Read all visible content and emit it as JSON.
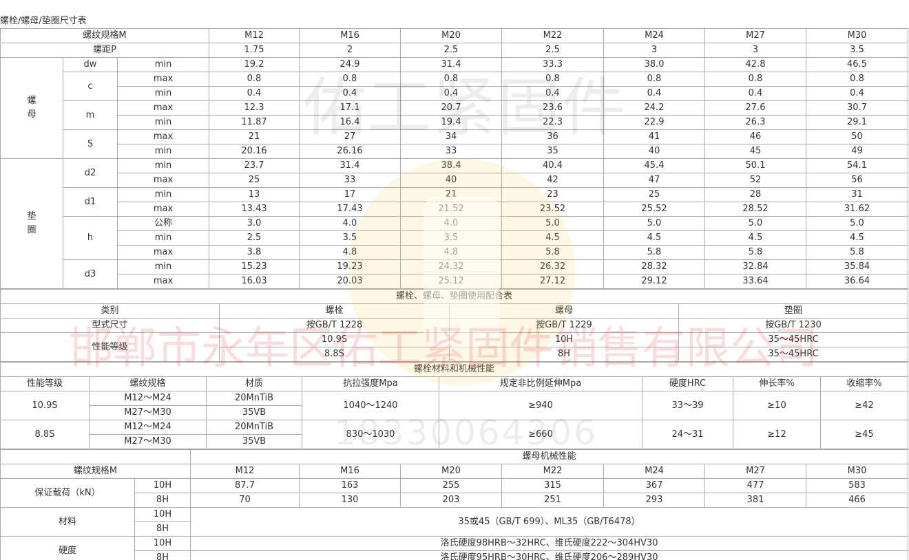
{
  "title": "螺栓/螺母/垫圈尺寸表",
  "size_table": {
    "spec_label": "螺纹规格M",
    "specs": [
      "M12",
      "M16",
      "M20",
      "M22",
      "M24",
      "M27",
      "M30"
    ],
    "pitch_label": "螺距P",
    "pitch": [
      "1.75",
      "2",
      "2.5",
      "2.5",
      "3",
      "3",
      "3.5"
    ],
    "groups": [
      {
        "label": "螺母",
        "params": [
          {
            "name": "dw",
            "rows": [
              {
                "sub": "min",
                "values": [
                  "19.2",
                  "24.9",
                  "31.4",
                  "33.3",
                  "38.0",
                  "42.8",
                  "46.5"
                ]
              }
            ]
          },
          {
            "name": "c",
            "rows": [
              {
                "sub": "max",
                "values": [
                  "0.8",
                  "0.8",
                  "0.8",
                  "0.8",
                  "0.8",
                  "0.8",
                  "0.8"
                ]
              },
              {
                "sub": "min",
                "values": [
                  "0.4",
                  "0.4",
                  "0.4",
                  "0.4",
                  "0.4",
                  "0.4",
                  "0.4"
                ]
              }
            ]
          },
          {
            "name": "m",
            "rows": [
              {
                "sub": "max",
                "values": [
                  "12.3",
                  "17.1",
                  "20.7",
                  "23.6",
                  "24.2",
                  "27.6",
                  "30.7"
                ]
              },
              {
                "sub": "min",
                "values": [
                  "11.87",
                  "16.4",
                  "19.4",
                  "22.3",
                  "22.9",
                  "26.3",
                  "29.1"
                ]
              }
            ]
          },
          {
            "name": "S",
            "rows": [
              {
                "sub": "max",
                "values": [
                  "21",
                  "27",
                  "34",
                  "36",
                  "41",
                  "46",
                  "50"
                ]
              },
              {
                "sub": "min",
                "values": [
                  "20.16",
                  "26.16",
                  "33",
                  "35",
                  "40",
                  "45",
                  "49"
                ]
              }
            ]
          }
        ]
      },
      {
        "label": "垫圈",
        "params": [
          {
            "name": "d2",
            "rows": [
              {
                "sub": "min",
                "values": [
                  "23.7",
                  "31.4",
                  "38.4",
                  "40.4",
                  "45.4",
                  "50.1",
                  "54.1"
                ]
              },
              {
                "sub": "max",
                "values": [
                  "25",
                  "33",
                  "40",
                  "42",
                  "47",
                  "52",
                  "56"
                ]
              }
            ]
          },
          {
            "name": "d1",
            "rows": [
              {
                "sub": "min",
                "values": [
                  "13",
                  "17",
                  "21",
                  "23",
                  "25",
                  "28",
                  "31"
                ]
              },
              {
                "sub": "max",
                "values": [
                  "13.43",
                  "17.43",
                  "21.52",
                  "23.52",
                  "25.52",
                  "28.52",
                  "31.62"
                ]
              }
            ]
          },
          {
            "name": "h",
            "rows": [
              {
                "sub": "公称",
                "values": [
                  "3.0",
                  "4.0",
                  "4.0",
                  "5.0",
                  "5.0",
                  "5.0",
                  "5.0"
                ]
              },
              {
                "sub": "min",
                "values": [
                  "2.5",
                  "3.5",
                  "3.5",
                  "4.5",
                  "4.5",
                  "4.5",
                  "4.5"
                ]
              },
              {
                "sub": "max",
                "values": [
                  "3.8",
                  "4.8",
                  "4.8",
                  "5.8",
                  "5.8",
                  "5.8",
                  "5.8"
                ]
              }
            ]
          },
          {
            "name": "d3",
            "rows": [
              {
                "sub": "min",
                "values": [
                  "15.23",
                  "19.23",
                  "24.32",
                  "26.32",
                  "28.32",
                  "32.84",
                  "35.84"
                ]
              },
              {
                "sub": "max",
                "values": [
                  "16.03",
                  "20.03",
                  "25.12",
                  "27.12",
                  "29.12",
                  "33.64",
                  "36.64"
                ]
              }
            ]
          }
        ]
      }
    ]
  },
  "match_table": {
    "title": "螺栓、螺母、垫圈使用配合表",
    "headers": [
      "类别",
      "螺栓",
      "螺母",
      "垫圈"
    ],
    "type_row": [
      "型式尺寸",
      "按GB/T 1228",
      "按GB/T 1229",
      "按GB/T 1230"
    ],
    "grade_label": "性能等级",
    "grade_rows": [
      [
        "10.9S",
        "10H",
        "35～45HRC"
      ],
      [
        "8.8S",
        "8H",
        "35～45HRC"
      ]
    ]
  },
  "bolt_table": {
    "title": "螺栓材料和机械性能",
    "headers": [
      "性能等级",
      "螺纹规格",
      "材质",
      "抗拉强度Mpa",
      "规定非比例延伸Mpa",
      "硬度HRC",
      "伸长率%",
      "收缩率%"
    ],
    "grades": [
      {
        "grade": "10.9S",
        "rows": [
          [
            "M12～M24",
            "20MnTiB"
          ],
          [
            "M27～M30",
            "35VB"
          ]
        ],
        "tensile": "1040～1240",
        "yield": "≥940",
        "hardness": "33～39",
        "elongation": "≥10",
        "shrinkage": "≥42"
      },
      {
        "grade": "8.8S",
        "rows": [
          [
            "M12～M24",
            "20MnTiB"
          ],
          [
            "M27～M30",
            "35VB"
          ]
        ],
        "tensile": "830～1030",
        "yield": "≥660",
        "hardness": "24～31",
        "elongation": "≥12",
        "shrinkage": "≥45"
      }
    ]
  },
  "nut_table": {
    "title": "螺母机械性能",
    "spec_label": "螺纹规格M",
    "specs": [
      "M12",
      "M16",
      "M20",
      "M22",
      "M24",
      "M27",
      "M30"
    ],
    "load_label": "保证载荷（kN）",
    "load_rows": [
      {
        "grade": "10H",
        "values": [
          "87.7",
          "163",
          "255",
          "315",
          "367",
          "477",
          "583"
        ]
      },
      {
        "grade": "8H",
        "values": [
          "70",
          "130",
          "203",
          "251",
          "293",
          "381",
          "466"
        ]
      }
    ],
    "material_label": "材料",
    "material_grades": [
      "10H",
      "8H"
    ],
    "material_text": "35或45（GB/T 699）、ML35（GB/T6478）",
    "hardness_label": "硬度",
    "hardness_rows": [
      {
        "grade": "10H",
        "text": "洛氏硬度98HRB～32HRC、维氏硬度222～304HV30"
      },
      {
        "grade": "8H",
        "text": "洛氏硬度95HRB～30HRC、维氏硬度206～289HV30"
      }
    ]
  },
  "watermarks": {
    "brand": "佑工紧固件",
    "company": "邯郸市永年区佑工紧固件销售有限公司",
    "phone": "18330064306"
  }
}
